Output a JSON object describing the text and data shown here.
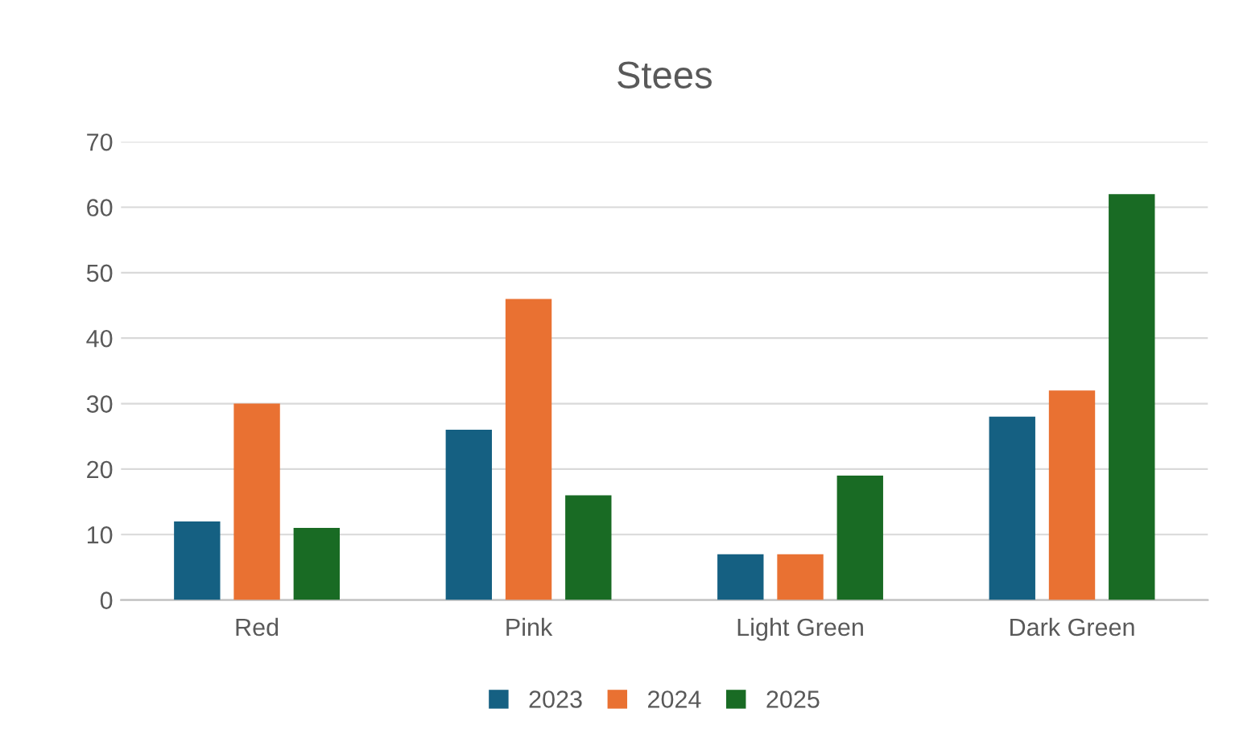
{
  "chart_data": {
    "type": "bar",
    "title": "Stees",
    "categories": [
      "Red",
      "Pink",
      "Light Green",
      "Dark Green"
    ],
    "series": [
      {
        "name": "2023",
        "color": "#156082",
        "values": [
          12,
          26,
          7,
          28
        ]
      },
      {
        "name": "2024",
        "color": "#e97132",
        "values": [
          30,
          46,
          7,
          32
        ]
      },
      {
        "name": "2025",
        "color": "#196b24",
        "values": [
          11,
          16,
          19,
          62
        ]
      }
    ],
    "ylim": [
      0,
      70
    ],
    "yticks": [
      0,
      10,
      20,
      30,
      40,
      50,
      60,
      70
    ],
    "grid": "y",
    "legend": "bottom"
  }
}
